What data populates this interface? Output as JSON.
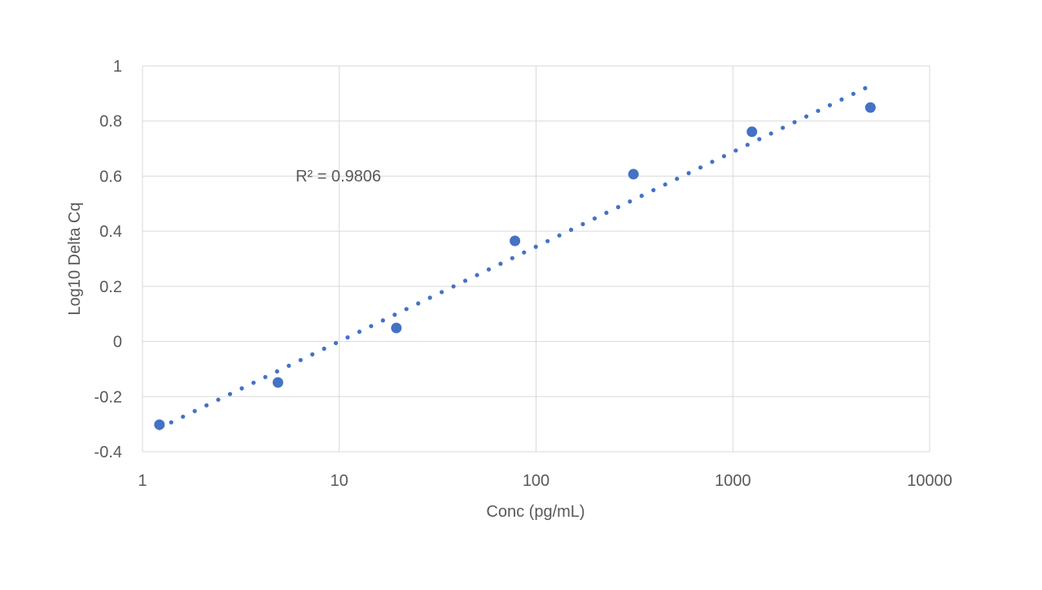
{
  "chart_data": {
    "type": "scatter",
    "title": "",
    "xlabel": "Conc (pg/mL)",
    "ylabel": "Log10 Delta Cq",
    "xscale": "log",
    "xlim": [
      1,
      10000
    ],
    "ylim": [
      -0.4,
      1
    ],
    "xticks": [
      "1",
      "10",
      "100",
      "1000",
      "10000"
    ],
    "xtick_values": [
      1,
      10,
      100,
      1000,
      10000
    ],
    "yticks": [
      "-0.4",
      "-0.2",
      "0",
      "0.2",
      "0.4",
      "0.6",
      "0.8",
      "1"
    ],
    "ytick_values": [
      -0.4,
      -0.2,
      0,
      0.2,
      0.4,
      0.6,
      0.8,
      1
    ],
    "grid": true,
    "series": [
      {
        "name": "Log10 Delta Cq",
        "color": "#4472C4",
        "x": [
          1.22,
          4.88,
          19.5,
          78.1,
          312.5,
          1250,
          5000
        ],
        "y": [
          -0.302,
          -0.149,
          0.049,
          0.365,
          0.607,
          0.761,
          0.849
        ]
      }
    ],
    "trendline": {
      "type": "logarithmic",
      "style": "dotted",
      "color": "#4472C4",
      "slope": 0.344,
      "intercept": -0.344,
      "x_range": [
        1.22,
        4700
      ],
      "annotation": "R² = 0.9806",
      "annotation_pos": {
        "x": 6,
        "y": 0.58
      }
    }
  }
}
